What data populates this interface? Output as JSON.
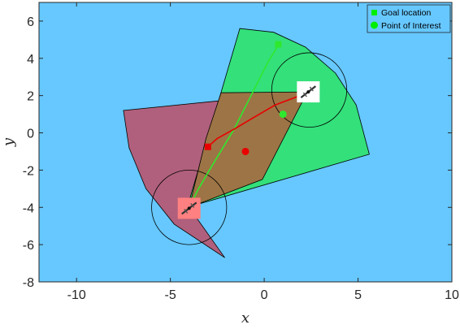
{
  "chart_data": {
    "type": "scatter",
    "title": "",
    "xlabel": "x",
    "ylabel": "y",
    "xlim": [
      -12,
      10
    ],
    "ylim": [
      -8,
      7
    ],
    "x_ticks": [
      -10,
      -5,
      0,
      5,
      10
    ],
    "y_ticks": [
      -8,
      -6,
      -4,
      -2,
      0,
      2,
      4,
      6
    ],
    "x_tick_labels": [
      "-10",
      "-5",
      "0",
      "5",
      "10"
    ],
    "y_tick_labels": [
      "-8",
      "-6",
      "-4",
      "-2",
      "0",
      "2",
      "4",
      "6"
    ],
    "grid": false,
    "legend_position": "top-right",
    "colors": {
      "background": "#66c8ff",
      "sector_green": "#33e07a",
      "sector_maroon": "#b0607c",
      "sector_overlap": "#9d7445",
      "green_path": "#2ee82e",
      "red_path": "#e80000",
      "agent_box_red": "#ff8080",
      "agent_box_white": "#ffffff"
    },
    "legend": [
      {
        "label": "Goal location",
        "marker": "square",
        "color": "#00ee00"
      },
      {
        "label": "Point of Interest",
        "marker": "circle",
        "color": "#00ee00"
      }
    ],
    "sectors": [
      {
        "name_key": "green",
        "center": [
          2.3,
          2.2
        ],
        "radius": 5.3,
        "start_deg": 187,
        "end_deg": 257,
        "start_x_dir": -1
      },
      {
        "name_key": "maroon",
        "center": [
          -4,
          -4
        ],
        "radius": 5.6,
        "start_deg": 22,
        "end_deg": 102
      }
    ],
    "sector_polygons": {
      "green": [
        [
          -4.1,
          -4.0
        ],
        [
          -1.3,
          5.6
        ],
        [
          0.5,
          5.4
        ],
        [
          2.2,
          4.6
        ],
        [
          3.8,
          3.2
        ],
        [
          4.9,
          1.5
        ],
        [
          5.6,
          -1.15
        ],
        [
          -4.1,
          -4.0
        ]
      ],
      "maroon": [
        [
          -4.0,
          -4.0
        ],
        [
          2.3,
          2.2
        ],
        [
          -7.5,
          1.2
        ],
        [
          -7.2,
          -0.8
        ],
        [
          -6.3,
          -3.0
        ],
        [
          -4.8,
          -4.9
        ],
        [
          -2.1,
          -6.7
        ],
        [
          -4.0,
          -4.0
        ]
      ],
      "overlap": [
        [
          -4.0,
          -4.0
        ],
        [
          -3.1,
          -0.3
        ],
        [
          -2.3,
          2.15
        ],
        [
          2.3,
          2.2
        ],
        [
          -0.1,
          -2.5
        ]
      ]
    },
    "circles": [
      {
        "center": [
          2.4,
          2.3
        ],
        "radius": 2.0
      },
      {
        "center": [
          -4.0,
          -4.0
        ],
        "radius": 2.0
      }
    ],
    "series": [
      {
        "name_key": "green-path",
        "x": [
          -4.0,
          -3.5,
          -2.8,
          -1.6,
          -0.7,
          0.2,
          0.75
        ],
        "y": [
          -4.0,
          -3.0,
          -1.8,
          0.2,
          2.0,
          3.8,
          4.7
        ]
      },
      {
        "name_key": "red-path",
        "x": [
          -3.0,
          -2.5,
          -1.6,
          -0.6,
          0.6,
          1.9,
          2.2
        ],
        "y": [
          -0.75,
          -0.3,
          0.2,
          0.8,
          1.5,
          2.0,
          2.1
        ]
      }
    ],
    "points": {
      "goal_green": [
        0.75,
        4.75
      ],
      "goal_red": [
        -3.0,
        -0.75
      ],
      "poi_green": [
        1.0,
        1.0
      ],
      "poi_red": [
        -1.0,
        -1.0
      ]
    },
    "agents": [
      {
        "center": [
          -4.0,
          -4.05
        ],
        "box_color": "#ff8080"
      },
      {
        "center": [
          2.35,
          2.2
        ],
        "box_color": "#ffffff"
      }
    ]
  }
}
